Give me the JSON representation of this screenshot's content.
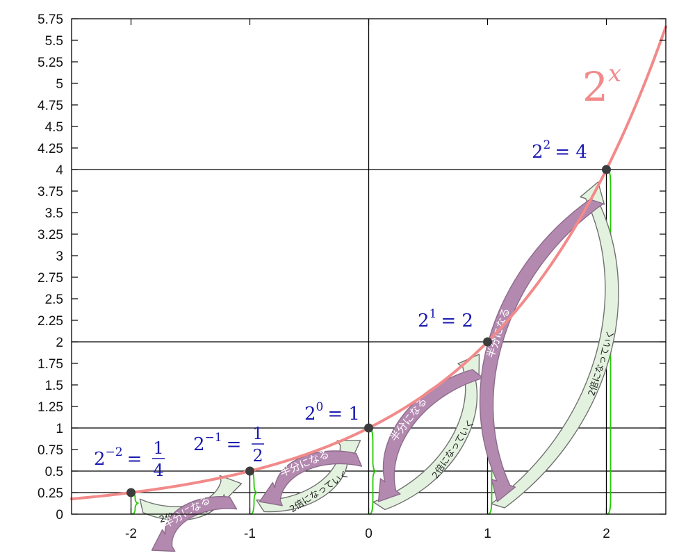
{
  "chart_data": {
    "type": "line",
    "function": "2^x",
    "curve_label": {
      "base": "2",
      "exponent": "x"
    },
    "xlim": [
      -2.5,
      2.5
    ],
    "ylim": [
      0,
      5.75
    ],
    "x_ticks": [
      -2,
      -1,
      0,
      1,
      2
    ],
    "x_tick_labels": [
      "-2",
      "-1",
      "0",
      "1",
      "2"
    ],
    "y_ticks": [
      0,
      0.25,
      0.5,
      0.75,
      1,
      1.25,
      1.5,
      1.75,
      2,
      2.25,
      2.5,
      2.75,
      3,
      3.25,
      3.5,
      3.75,
      4,
      4.25,
      4.5,
      4.75,
      5,
      5.25,
      5.5,
      5.75
    ],
    "y_tick_labels": [
      "0",
      "0.25",
      "0.5",
      "0.75",
      "1",
      "1.25",
      "1.5",
      "1.75",
      "2",
      "2.25",
      "2.5",
      "2.75",
      "3",
      "3.25",
      "3.5",
      "3.75",
      "4",
      "4.25",
      "4.5",
      "4.75",
      "5",
      "5.25",
      "5.5",
      "5.75"
    ],
    "points": [
      {
        "x": -2,
        "y": 0.25,
        "base": "2",
        "exp": "−2",
        "eq": "=",
        "frac_num": "1",
        "frac_den": "4"
      },
      {
        "x": -1,
        "y": 0.5,
        "base": "2",
        "exp": "−1",
        "eq": "=",
        "frac_num": "1",
        "frac_den": "2"
      },
      {
        "x": 0,
        "y": 1,
        "base": "2",
        "exp": "0",
        "eq": "= 1"
      },
      {
        "x": 1,
        "y": 2,
        "base": "2",
        "exp": "1",
        "eq": "= 2"
      },
      {
        "x": 2,
        "y": 4,
        "base": "2",
        "exp": "2",
        "eq": "= 4"
      }
    ],
    "annotations": {
      "double_label": "2倍になっていく",
      "half_label": "半分になる"
    },
    "colors": {
      "curve": "#f28a8a",
      "label": "#1a1ab0",
      "point": "#3c3c3c",
      "brace": "#22cc00",
      "double_fill": "#e3f2df",
      "double_stroke": "#707070",
      "half_fill": "#b389b0",
      "half_stroke": "#8c6b8a"
    }
  }
}
